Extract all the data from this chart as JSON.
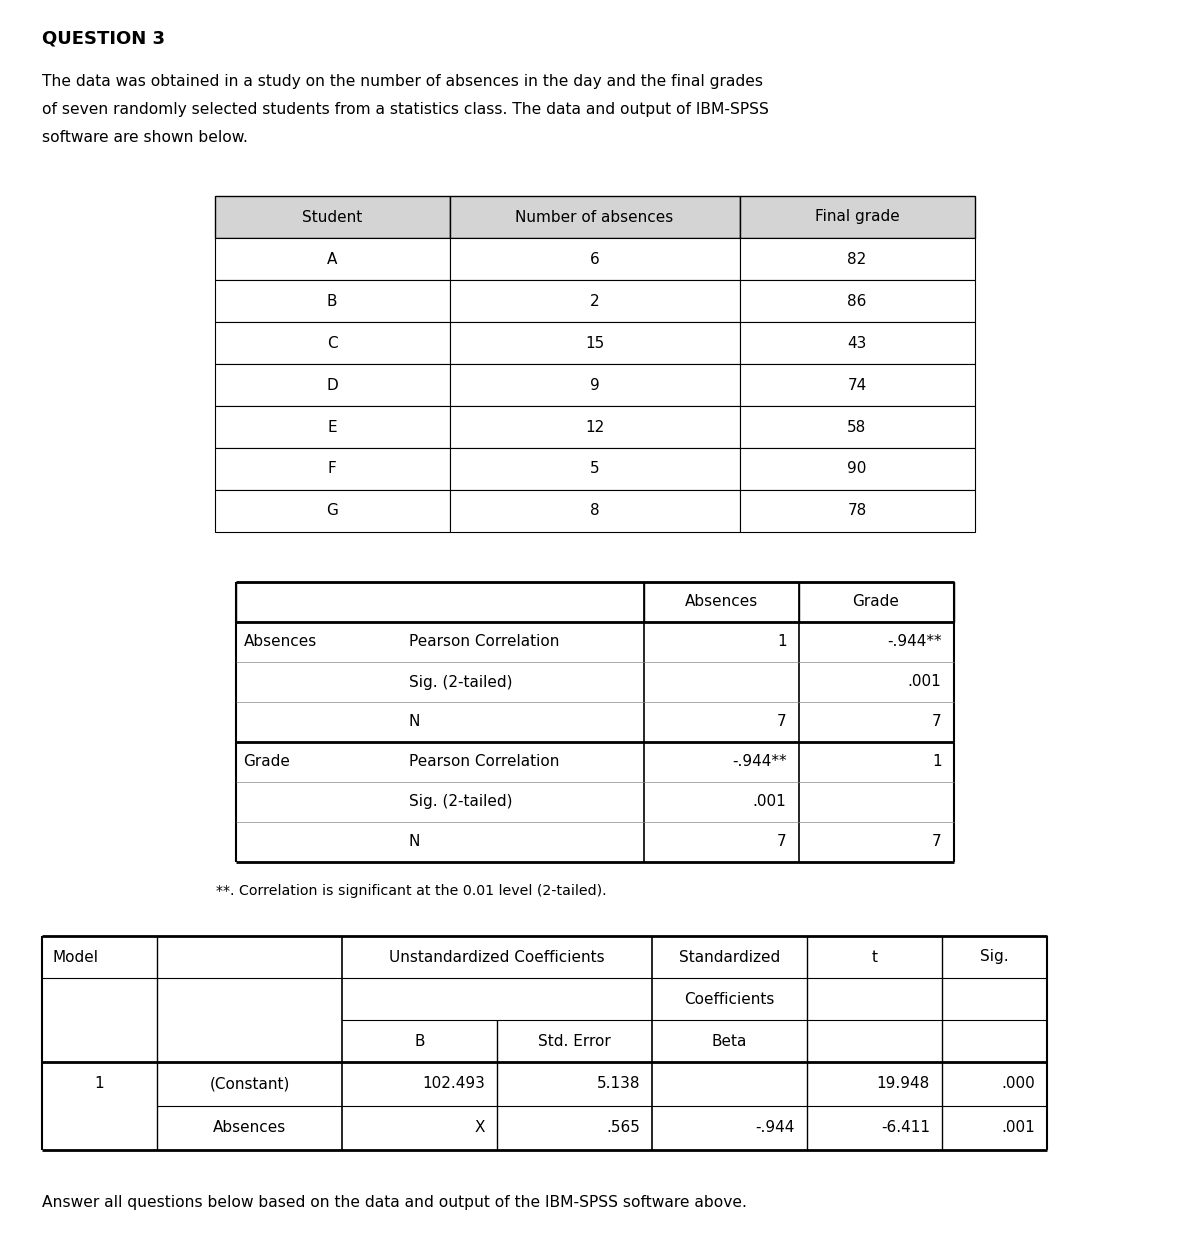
{
  "title": "QUESTION 3",
  "description_lines": [
    "The data was obtained in a study on the number of absences in the day and the final grades",
    "of seven randomly selected students from a statistics class. The data and output of IBM-SPSS",
    "software are shown below."
  ],
  "table1_headers": [
    "Student",
    "Number of absences",
    "Final grade"
  ],
  "table1_rows": [
    [
      "A",
      "6",
      "82"
    ],
    [
      "B",
      "2",
      "86"
    ],
    [
      "C",
      "15",
      "43"
    ],
    [
      "D",
      "9",
      "74"
    ],
    [
      "E",
      "12",
      "58"
    ],
    [
      "F",
      "5",
      "90"
    ],
    [
      "G",
      "8",
      "78"
    ]
  ],
  "table2_col_headers": [
    "Absences",
    "Grade"
  ],
  "table2_row_groups": [
    {
      "label": "Absences",
      "rows": [
        {
          "stat": "Pearson Correlation",
          "abs": "1",
          "grade": "-.944**"
        },
        {
          "stat": "Sig. (2-tailed)",
          "abs": "",
          "grade": ".001"
        },
        {
          "stat": "N",
          "abs": "7",
          "grade": "7"
        }
      ]
    },
    {
      "label": "Grade",
      "rows": [
        {
          "stat": "Pearson Correlation",
          "abs": "-.944**",
          "grade": "1"
        },
        {
          "stat": "Sig. (2-tailed)",
          "abs": ".001",
          "grade": ""
        },
        {
          "stat": "N",
          "abs": "7",
          "grade": "7"
        }
      ]
    }
  ],
  "table2_footnote": "**. Correlation is significant at the 0.01 level (2-tailed).",
  "table3_data": [
    [
      "1",
      "(Constant)",
      "102.493",
      "5.138",
      "",
      "19.948",
      ".000"
    ],
    [
      "",
      "Absences",
      "X",
      ".565",
      "-.944",
      "-6.411",
      ".001"
    ]
  ],
  "footer": "Answer all questions below based on the data and output of the IBM-SPSS software above.",
  "bg_color": "#ffffff",
  "header_bg": "#d4d4d4",
  "text_color": "#000000"
}
